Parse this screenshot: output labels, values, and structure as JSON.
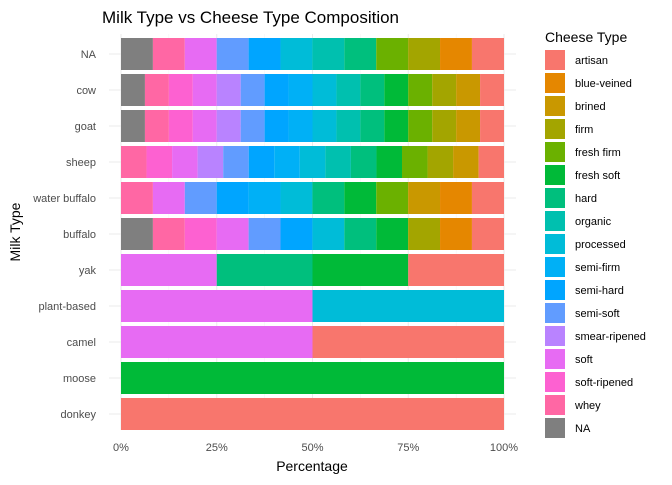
{
  "chart_data": {
    "type": "bar",
    "orientation": "horizontal",
    "stacked": "percent",
    "title": "Milk Type vs Cheese Type Composition",
    "xlabel": "Percentage",
    "ylabel": "Milk Type",
    "xlim": [
      0,
      100
    ],
    "x_ticks": [
      "0%",
      "25%",
      "50%",
      "75%",
      "100%"
    ],
    "x_tick_values": [
      0,
      25,
      50,
      75,
      100
    ],
    "grid": true,
    "legend_position": "right",
    "legend_title": "Cheese Type",
    "cheese_types": [
      {
        "name": "artisan",
        "color": "#F8766D"
      },
      {
        "name": "blue-veined",
        "color": "#E58700"
      },
      {
        "name": "brined",
        "color": "#C99800"
      },
      {
        "name": "firm",
        "color": "#A3A500"
      },
      {
        "name": "fresh firm",
        "color": "#6BB100"
      },
      {
        "name": "fresh soft",
        "color": "#00BA38"
      },
      {
        "name": "hard",
        "color": "#00BF7D"
      },
      {
        "name": "organic",
        "color": "#00C0AF"
      },
      {
        "name": "processed",
        "color": "#00BCD8"
      },
      {
        "name": "semi-firm",
        "color": "#00B0F6"
      },
      {
        "name": "semi-hard",
        "color": "#00A5FF"
      },
      {
        "name": "semi-soft",
        "color": "#619CFF"
      },
      {
        "name": "smear-ripened",
        "color": "#B983FF"
      },
      {
        "name": "soft",
        "color": "#E76BF3"
      },
      {
        "name": "soft-ripened",
        "color": "#FD61D1"
      },
      {
        "name": "whey",
        "color": "#FF67A4"
      },
      {
        "name": "NA",
        "color": "#7F7F7F"
      }
    ],
    "categories": [
      "NA",
      "cow",
      "goat",
      "sheep",
      "water buffalo",
      "buffalo",
      "yak",
      "plant-based",
      "camel",
      "moose",
      "donkey"
    ],
    "rows": [
      {
        "label": "NA",
        "segments": [
          {
            "type": "NA",
            "value": 8.33
          },
          {
            "type": "whey",
            "value": 8.33
          },
          {
            "type": "soft",
            "value": 8.33
          },
          {
            "type": "semi-soft",
            "value": 8.33
          },
          {
            "type": "semi-hard",
            "value": 8.33
          },
          {
            "type": "processed",
            "value": 8.33
          },
          {
            "type": "organic",
            "value": 8.33
          },
          {
            "type": "hard",
            "value": 8.33
          },
          {
            "type": "fresh firm",
            "value": 8.33
          },
          {
            "type": "firm",
            "value": 8.33
          },
          {
            "type": "blue-veined",
            "value": 8.33
          },
          {
            "type": "artisan",
            "value": 8.37
          }
        ]
      },
      {
        "label": "cow",
        "segments": [
          {
            "type": "NA",
            "value": 6.25
          },
          {
            "type": "whey",
            "value": 6.25
          },
          {
            "type": "soft-ripened",
            "value": 6.25
          },
          {
            "type": "soft",
            "value": 6.25
          },
          {
            "type": "smear-ripened",
            "value": 6.25
          },
          {
            "type": "semi-soft",
            "value": 6.25
          },
          {
            "type": "semi-hard",
            "value": 6.25
          },
          {
            "type": "semi-firm",
            "value": 6.25
          },
          {
            "type": "processed",
            "value": 6.25
          },
          {
            "type": "organic",
            "value": 6.25
          },
          {
            "type": "hard",
            "value": 6.25
          },
          {
            "type": "fresh soft",
            "value": 6.25
          },
          {
            "type": "fresh firm",
            "value": 6.25
          },
          {
            "type": "firm",
            "value": 6.25
          },
          {
            "type": "brined",
            "value": 6.25
          },
          {
            "type": "artisan",
            "value": 6.25
          }
        ]
      },
      {
        "label": "goat",
        "segments": [
          {
            "type": "NA",
            "value": 6.25
          },
          {
            "type": "whey",
            "value": 6.25
          },
          {
            "type": "soft-ripened",
            "value": 6.25
          },
          {
            "type": "soft",
            "value": 6.25
          },
          {
            "type": "smear-ripened",
            "value": 6.25
          },
          {
            "type": "semi-soft",
            "value": 6.25
          },
          {
            "type": "semi-hard",
            "value": 6.25
          },
          {
            "type": "semi-firm",
            "value": 6.25
          },
          {
            "type": "processed",
            "value": 6.25
          },
          {
            "type": "organic",
            "value": 6.25
          },
          {
            "type": "hard",
            "value": 6.25
          },
          {
            "type": "fresh soft",
            "value": 6.25
          },
          {
            "type": "fresh firm",
            "value": 6.25
          },
          {
            "type": "firm",
            "value": 6.25
          },
          {
            "type": "brined",
            "value": 6.25
          },
          {
            "type": "artisan",
            "value": 6.25
          }
        ]
      },
      {
        "label": "sheep",
        "segments": [
          {
            "type": "whey",
            "value": 6.67
          },
          {
            "type": "soft-ripened",
            "value": 6.67
          },
          {
            "type": "soft",
            "value": 6.67
          },
          {
            "type": "smear-ripened",
            "value": 6.67
          },
          {
            "type": "semi-soft",
            "value": 6.67
          },
          {
            "type": "semi-hard",
            "value": 6.67
          },
          {
            "type": "semi-firm",
            "value": 6.67
          },
          {
            "type": "processed",
            "value": 6.67
          },
          {
            "type": "organic",
            "value": 6.67
          },
          {
            "type": "hard",
            "value": 6.67
          },
          {
            "type": "fresh soft",
            "value": 6.67
          },
          {
            "type": "fresh firm",
            "value": 6.67
          },
          {
            "type": "firm",
            "value": 6.67
          },
          {
            "type": "brined",
            "value": 6.67
          },
          {
            "type": "artisan",
            "value": 6.62
          }
        ]
      },
      {
        "label": "water buffalo",
        "segments": [
          {
            "type": "whey",
            "value": 8.33
          },
          {
            "type": "soft",
            "value": 8.33
          },
          {
            "type": "semi-soft",
            "value": 8.33
          },
          {
            "type": "semi-hard",
            "value": 8.33
          },
          {
            "type": "semi-firm",
            "value": 8.33
          },
          {
            "type": "processed",
            "value": 8.33
          },
          {
            "type": "hard",
            "value": 8.33
          },
          {
            "type": "fresh soft",
            "value": 8.33
          },
          {
            "type": "fresh firm",
            "value": 8.33
          },
          {
            "type": "brined",
            "value": 8.33
          },
          {
            "type": "blue-veined",
            "value": 8.33
          },
          {
            "type": "artisan",
            "value": 8.37
          }
        ]
      },
      {
        "label": "buffalo",
        "segments": [
          {
            "type": "NA",
            "value": 8.33
          },
          {
            "type": "whey",
            "value": 8.33
          },
          {
            "type": "soft-ripened",
            "value": 8.33
          },
          {
            "type": "soft",
            "value": 8.33
          },
          {
            "type": "semi-soft",
            "value": 8.33
          },
          {
            "type": "semi-hard",
            "value": 8.33
          },
          {
            "type": "processed",
            "value": 8.33
          },
          {
            "type": "hard",
            "value": 8.33
          },
          {
            "type": "fresh soft",
            "value": 8.33
          },
          {
            "type": "firm",
            "value": 8.33
          },
          {
            "type": "blue-veined",
            "value": 8.33
          },
          {
            "type": "artisan",
            "value": 8.37
          }
        ]
      },
      {
        "label": "yak",
        "segments": [
          {
            "type": "soft",
            "value": 25
          },
          {
            "type": "hard",
            "value": 25
          },
          {
            "type": "fresh soft",
            "value": 25
          },
          {
            "type": "artisan",
            "value": 25
          }
        ]
      },
      {
        "label": "plant-based",
        "segments": [
          {
            "type": "soft",
            "value": 50
          },
          {
            "type": "processed",
            "value": 50
          }
        ]
      },
      {
        "label": "camel",
        "segments": [
          {
            "type": "soft",
            "value": 50
          },
          {
            "type": "artisan",
            "value": 50
          }
        ]
      },
      {
        "label": "moose",
        "segments": [
          {
            "type": "fresh soft",
            "value": 100
          }
        ]
      },
      {
        "label": "donkey",
        "segments": [
          {
            "type": "artisan",
            "value": 100
          }
        ]
      }
    ]
  }
}
